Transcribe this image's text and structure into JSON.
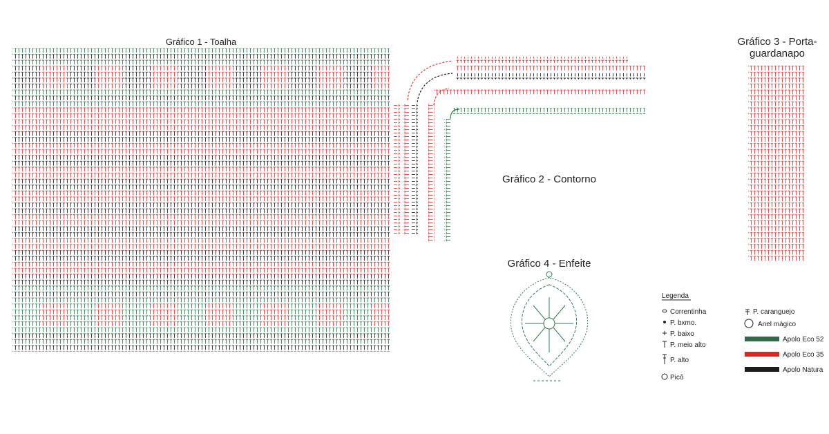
{
  "charts": [
    {
      "title": "Gráfico 1 - Toalha"
    },
    {
      "title": "Gráfico 2 - Contorno"
    },
    {
      "title_lines": [
        "Gráfico 3 - Porta-",
        "guardanapo"
      ]
    },
    {
      "title": "Gráfico 4 - Enfeite"
    }
  ],
  "legend": {
    "title": "Legenda",
    "symbols": [
      "Correntinha",
      "P. bxmo.",
      "P. baixo",
      "P. meio alto",
      "P. alto",
      "Picô",
      "P. caranguejo",
      "Anel mágico"
    ],
    "yarns": [
      "Apolo Eco 52",
      "Apolo Eco 35",
      "Apolo Natura"
    ]
  }
}
